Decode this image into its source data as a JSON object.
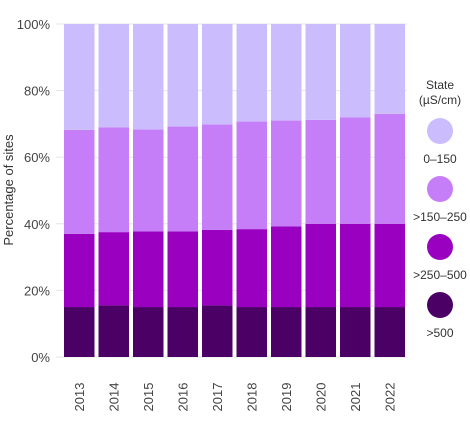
{
  "chart_data": {
    "type": "bar",
    "stacked": true,
    "ylabel": "Percentage of sites",
    "xlabel": "",
    "ylim": [
      0,
      100
    ],
    "yticks": [
      "0%",
      "20%",
      "40%",
      "60%",
      "80%",
      "100%"
    ],
    "categories": [
      "2013",
      "2014",
      "2015",
      "2016",
      "2017",
      "2018",
      "2019",
      "2020",
      "2021",
      "2022"
    ],
    "legend_title_line1": "State",
    "legend_title_line2": "(µS/cm)",
    "legend_position": "right",
    "series": [
      {
        "name": ">500",
        "color": "#4b0066",
        "values": [
          15,
          15.5,
          15,
          15,
          15.5,
          15,
          15,
          15,
          15,
          15
        ]
      },
      {
        "name": ">250–500",
        "color": "#9a00c0",
        "values": [
          22,
          22,
          22.7,
          22.7,
          22.7,
          23.4,
          24.2,
          25,
          25,
          25
        ]
      },
      {
        "name": ">150–250",
        "color": "#c57ef7",
        "values": [
          31.2,
          31.5,
          30.6,
          31.5,
          31.6,
          32.3,
          31.8,
          31.2,
          32,
          33
        ]
      },
      {
        "name": "0–150",
        "color": "#cbbdfd",
        "values": [
          31.8,
          31,
          31.7,
          30.8,
          30.2,
          29.3,
          29,
          28.8,
          28,
          27
        ]
      }
    ],
    "legend_order": [
      3,
      2,
      1,
      0
    ]
  }
}
